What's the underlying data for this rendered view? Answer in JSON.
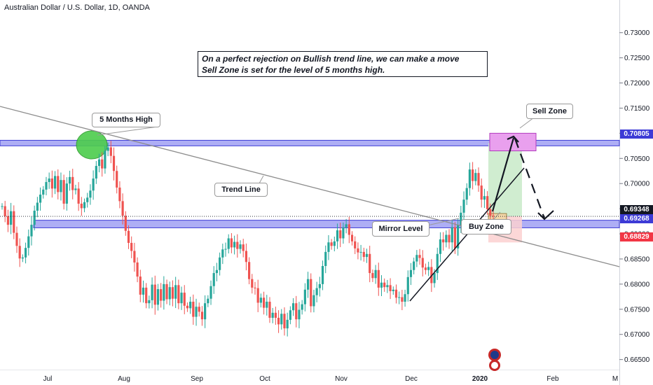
{
  "header": {
    "symbol_title": "Australian Dollar / U.S. Dollar, 1D, OANDA"
  },
  "note": {
    "line1": "On a perfect rejection on Bullish trend line, we can make a move",
    "line2": "Sell Zone is set for the level of 5 months high."
  },
  "labels": {
    "five_months_high": "5 Months High",
    "trend_line": "Trend Line",
    "mirror_level": "Mirror Level",
    "buy_zone": "Buy Zone",
    "sell_zone": "Sell Zone"
  },
  "price_badges": [
    {
      "value": "0.70805",
      "bg": "#3d3bd6",
      "fg": "#ffffff"
    },
    {
      "value": "0.69348",
      "bg": "#131722",
      "fg": "#ffffff"
    },
    {
      "value": "0.69268",
      "bg": "#3d3bd6",
      "fg": "#ffffff"
    },
    {
      "value": "0.68829",
      "bg": "#f23645",
      "fg": "#ffffff"
    }
  ],
  "colors": {
    "up_candle": "#26a69a",
    "down_candle": "#ef5350",
    "zone_fill": "#aeaef5",
    "zone_border": "#3d3bd6",
    "sell_zone_fill": "#e9a0ee",
    "sell_zone_border": "#b23bbd",
    "projection_green": "#c8eac8",
    "projection_red": "#fbd0d0",
    "highlight_circle": "#4ccd4c",
    "trend_line": "#8d8d8d"
  },
  "chart_data": {
    "type": "candlestick",
    "title": "Australian Dollar / U.S. Dollar, 1D, OANDA",
    "xlabel": "",
    "ylabel": "",
    "ylim": [
      0.663,
      0.7365
    ],
    "grid": false,
    "yticks": [
      "0.73000",
      "0.72500",
      "0.72000",
      "0.71500",
      "0.71000",
      "0.70500",
      "0.70000",
      "0.69500",
      "0.69000",
      "0.68500",
      "0.68000",
      "0.67500",
      "0.67000",
      "0.66500"
    ],
    "xticks": [
      "Jul",
      "Aug",
      "Sep",
      "Oct",
      "Nov",
      "Dec",
      "2020",
      "Feb",
      "M"
    ],
    "ohlc_start": 0.6955,
    "series": [
      {
        "values": [
          0.6955,
          0.6935,
          0.6918,
          0.6945,
          0.6902,
          0.6876,
          0.6851,
          0.6853,
          0.6872,
          0.6895,
          0.6918,
          0.6946,
          0.6962,
          0.6978,
          0.6988,
          0.7003,
          0.701,
          0.699,
          0.7015,
          0.6983,
          0.7007,
          0.696,
          0.7,
          0.7013,
          0.6987,
          0.699,
          0.696,
          0.6951,
          0.6963,
          0.6972,
          0.6986,
          0.701,
          0.7035,
          0.7048,
          0.703,
          0.7065,
          0.7072,
          0.7055,
          0.7025,
          0.6992,
          0.6965,
          0.6936,
          0.6906,
          0.6882,
          0.6866,
          0.6843,
          0.6815,
          0.6779,
          0.6793,
          0.6762,
          0.6768,
          0.6799,
          0.6759,
          0.679,
          0.6767,
          0.68,
          0.677,
          0.6794,
          0.6771,
          0.6798,
          0.6762,
          0.6783,
          0.6757,
          0.6752,
          0.6765,
          0.6735,
          0.6755,
          0.6745,
          0.673,
          0.6762,
          0.6771,
          0.6796,
          0.6822,
          0.6828,
          0.6853,
          0.6869,
          0.687,
          0.6891,
          0.6873,
          0.6884,
          0.687,
          0.6879,
          0.6866,
          0.6844,
          0.681,
          0.6793,
          0.6792,
          0.6763,
          0.6773,
          0.6753,
          0.6765,
          0.6733,
          0.6743,
          0.6733,
          0.672,
          0.6741,
          0.6712,
          0.6729,
          0.6748,
          0.6762,
          0.673,
          0.6749,
          0.676,
          0.6789,
          0.681,
          0.6756,
          0.6778,
          0.6792,
          0.68,
          0.6836,
          0.6864,
          0.6883,
          0.6876,
          0.6885,
          0.6907,
          0.6891,
          0.6913,
          0.6919,
          0.6898,
          0.6885,
          0.6871,
          0.6863,
          0.6864,
          0.6854,
          0.686,
          0.6822,
          0.6812,
          0.6828,
          0.6793,
          0.6803,
          0.6794,
          0.6798,
          0.6786,
          0.6789,
          0.6773,
          0.6774,
          0.6765,
          0.678,
          0.6814,
          0.6828,
          0.6845,
          0.6858,
          0.6852,
          0.6833,
          0.6828,
          0.6834,
          0.6802,
          0.6822,
          0.686,
          0.6889,
          0.6883,
          0.6898,
          0.6883,
          0.6913,
          0.6871,
          0.6917,
          0.6942,
          0.6968,
          0.6991,
          0.7028,
          0.7005,
          0.7021,
          0.6996,
          0.6968,
          0.6975,
          0.6949,
          0.6936,
          0.6935
        ]
      }
    ],
    "annotations": {
      "resistance_zone": [
        0.7075,
        0.7086
      ],
      "mirror_level_zone": [
        0.6912,
        0.6927
      ],
      "sell_zone_box": [
        0.7065,
        0.71
      ],
      "projection_target": 0.70805,
      "projection_entry": 0.69348,
      "projection_stop": 0.68829
    }
  }
}
